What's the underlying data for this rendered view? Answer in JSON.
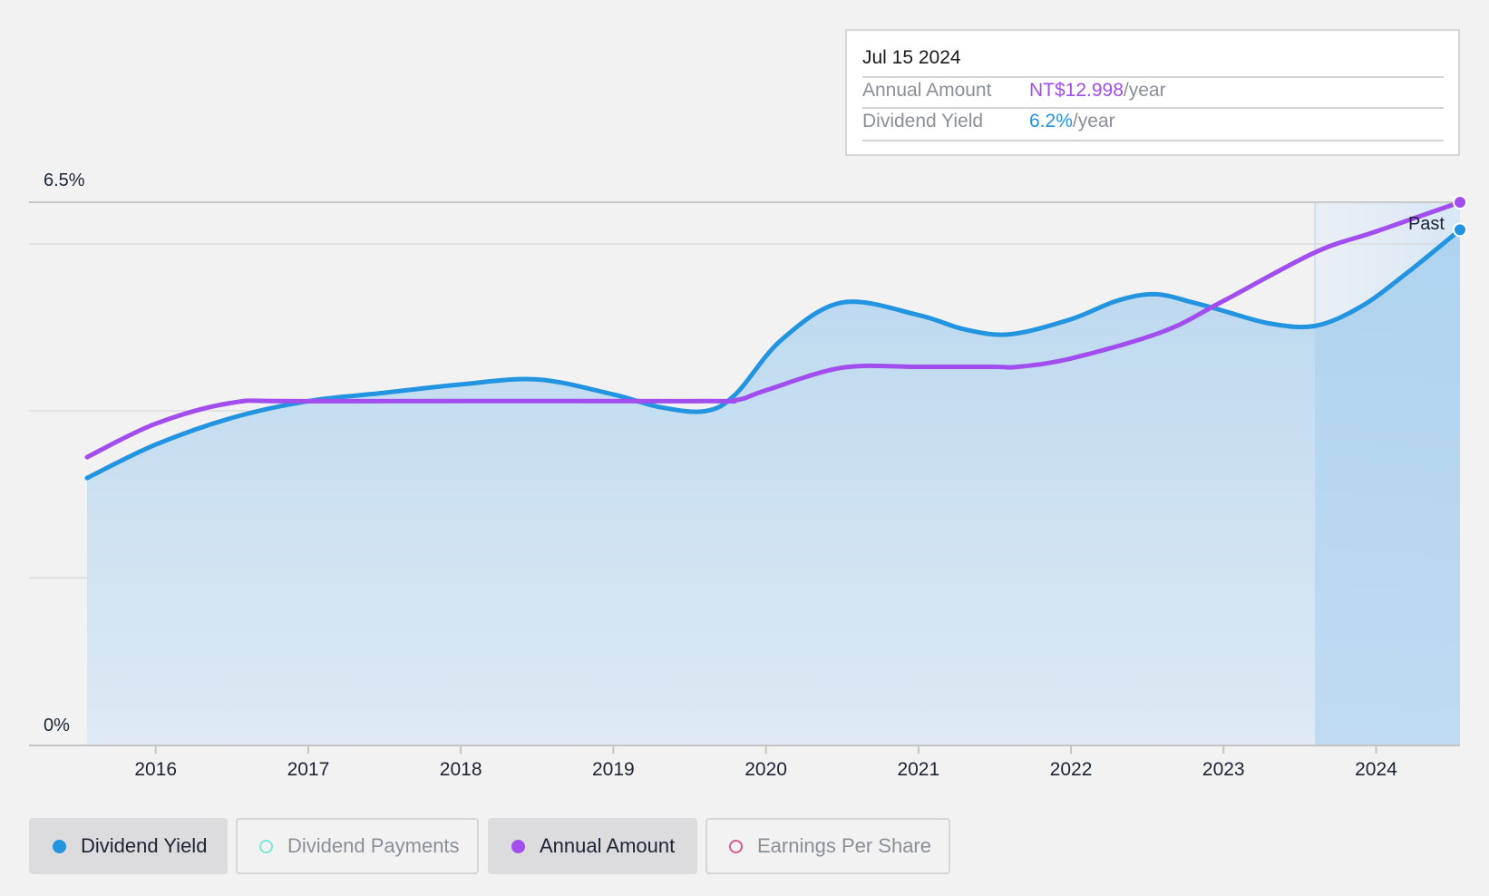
{
  "tooltip": {
    "date": "Jul 15 2024",
    "rows": [
      {
        "label": "Annual Amount",
        "value": "NT$12.998",
        "unit": "/year",
        "color": "#a24ded"
      },
      {
        "label": "Dividend Yield",
        "value": "6.2%",
        "unit": "/year",
        "color": "#1f93e0"
      }
    ]
  },
  "past_label": "Past",
  "legend": [
    {
      "label": "Dividend Yield",
      "color": "#2394e0",
      "active": true,
      "hollow": false
    },
    {
      "label": "Dividend Payments",
      "color": "#7de8dc",
      "active": false,
      "hollow": true
    },
    {
      "label": "Annual Amount",
      "color": "#a24ded",
      "active": true,
      "hollow": false
    },
    {
      "label": "Earnings Per Share",
      "color": "#d45c8f",
      "active": false,
      "hollow": true
    }
  ],
  "chart_data": {
    "type": "area",
    "x_ticks": [
      "2016",
      "2017",
      "2018",
      "2019",
      "2020",
      "2021",
      "2022",
      "2023",
      "2024"
    ],
    "y_ticks": [
      "0%",
      "6.5%"
    ],
    "ylim": [
      0,
      6.5
    ],
    "xlim": [
      2015.3,
      2024.55
    ],
    "grid": true,
    "past_region_start": 2023.6,
    "series": [
      {
        "name": "Dividend Yield",
        "color": "#2394e0",
        "x": [
          2015.55,
          2016.0,
          2016.5,
          2017.0,
          2017.5,
          2018.0,
          2018.5,
          2019.0,
          2019.3,
          2019.6,
          2019.8,
          2020.1,
          2020.5,
          2021.0,
          2021.3,
          2021.6,
          2022.0,
          2022.3,
          2022.55,
          2022.8,
          2023.0,
          2023.3,
          2023.6,
          2023.9,
          2024.2,
          2024.55
        ],
        "values": [
          3.2,
          3.6,
          3.92,
          4.12,
          4.22,
          4.32,
          4.38,
          4.2,
          4.05,
          4.0,
          4.2,
          4.85,
          5.3,
          5.15,
          4.98,
          4.92,
          5.1,
          5.32,
          5.4,
          5.3,
          5.2,
          5.05,
          5.02,
          5.25,
          5.65,
          6.17
        ]
      },
      {
        "name": "Annual Amount",
        "color": "#a24ded",
        "x": [
          2015.55,
          2016.0,
          2016.5,
          2017.0,
          2019.5,
          2019.8,
          2020.0,
          2020.5,
          2021.0,
          2021.5,
          2021.65,
          2022.0,
          2022.6,
          2023.0,
          2023.6,
          2024.0,
          2024.55
        ],
        "values": [
          3.45,
          3.85,
          4.1,
          4.12,
          4.12,
          4.13,
          4.25,
          4.52,
          4.53,
          4.53,
          4.53,
          4.63,
          4.95,
          5.32,
          5.9,
          6.15,
          6.5
        ]
      }
    ]
  }
}
